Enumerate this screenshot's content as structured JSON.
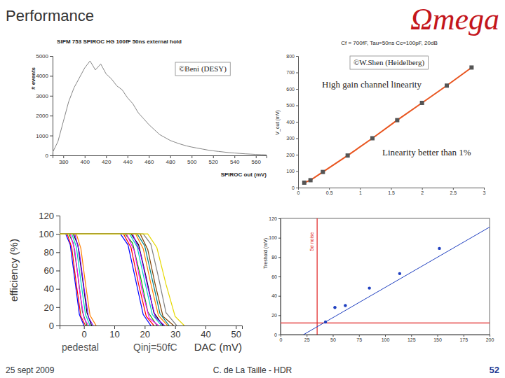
{
  "page": {
    "title": "Performance",
    "logo": "Ωmega",
    "footer": {
      "date": "25 sept 2009",
      "author": "C. de La Taille - HDR",
      "page": "52"
    }
  },
  "chart_data": [
    {
      "type": "line",
      "title": "SIPM 753 SPIROC HG 100fF 50ns external hold",
      "x_label": "SPIROC out (mV)",
      "y_label": "# events",
      "annotations": [
        "©Beni (DESY)"
      ],
      "x": [
        370,
        375,
        380,
        385,
        390,
        395,
        400,
        405,
        410,
        415,
        420,
        425,
        430,
        435,
        440,
        445,
        450,
        455,
        460,
        465,
        470,
        475,
        480,
        485,
        490,
        495,
        500,
        505,
        510,
        515,
        520,
        525,
        530,
        535,
        540,
        545,
        550,
        555,
        560,
        565,
        570
      ],
      "series": [
        {
          "color": "#777777",
          "values": [
            150,
            700,
            1700,
            2700,
            3400,
            3900,
            4400,
            4750,
            4300,
            4600,
            4100,
            3850,
            3500,
            3300,
            2900,
            2600,
            2150,
            1850,
            1550,
            1300,
            1050,
            900,
            750,
            650,
            560,
            480,
            420,
            370,
            320,
            270,
            230,
            200,
            170,
            140,
            120,
            100,
            80,
            65,
            50,
            40,
            30
          ]
        }
      ],
      "xlim": [
        370,
        570
      ],
      "xticks": [
        380,
        400,
        420,
        440,
        460,
        480,
        500,
        520,
        540,
        560
      ],
      "ylim": [
        0,
        5000
      ],
      "yticks": [
        0,
        1000,
        2000,
        3000,
        4000,
        5000
      ]
    },
    {
      "type": "line",
      "title": "Cf = 700fF, Tau=50ns Cc=100pF, 20dB",
      "y_label": "V_out (mV)",
      "annotations": [
        "©W.Shen (Heidelberg)",
        "High gain channel linearity",
        "Linearity better than 1%"
      ],
      "x": [
        0.1,
        0.2,
        0.4,
        0.8,
        1.2,
        1.6,
        2,
        2.4,
        2.8
      ],
      "series": [
        {
          "color": "#e8541e",
          "marker": "square",
          "values": [
            30,
            45,
            95,
            195,
            300,
            410,
            515,
            620,
            730
          ]
        }
      ],
      "xlim": [
        0,
        3
      ],
      "xticks": [
        0,
        0.5,
        1,
        1.5,
        2,
        2.5,
        3
      ],
      "ylim": [
        0,
        800
      ],
      "yticks": [
        0,
        100,
        200,
        300,
        400,
        500,
        600,
        700,
        800
      ]
    },
    {
      "type": "line",
      "x_label": "DAC (mV)",
      "y_label": "efficiency (%)",
      "annotations": [
        "pedestal",
        "Qinj=50fC"
      ],
      "series": [
        {
          "color": "#0000ff",
          "x": [
            -8,
            -6,
            -4.5,
            -3,
            -1.5,
            0
          ],
          "values": [
            100,
            100,
            88,
            50,
            12,
            0
          ]
        },
        {
          "color": "#ff0000",
          "x": [
            -8,
            -5.5,
            -4,
            -2.5,
            -1,
            0.5
          ],
          "values": [
            100,
            100,
            85,
            45,
            10,
            0
          ]
        },
        {
          "color": "#00aa00",
          "x": [
            -8,
            -5,
            -3.5,
            -2,
            -0.5,
            1
          ],
          "values": [
            100,
            100,
            90,
            55,
            15,
            0
          ]
        },
        {
          "color": "#ff00ff",
          "x": [
            -8,
            -4.5,
            -3,
            -1.5,
            0,
            1.5
          ],
          "values": [
            100,
            100,
            82,
            40,
            8,
            0
          ]
        },
        {
          "color": "#00cccc",
          "x": [
            -8,
            -4,
            -2.5,
            -1,
            0.5,
            2
          ],
          "values": [
            100,
            100,
            86,
            48,
            12,
            0
          ]
        },
        {
          "color": "#000000",
          "x": [
            -8,
            -3.5,
            -2,
            -0.5,
            1,
            2.5
          ],
          "values": [
            100,
            100,
            88,
            52,
            14,
            0
          ]
        },
        {
          "color": "#8000ff",
          "x": [
            -8,
            -3,
            -1.5,
            0,
            1.5,
            3
          ],
          "values": [
            100,
            100,
            80,
            42,
            9,
            0
          ]
        },
        {
          "color": "#ff8000",
          "x": [
            -8,
            -2.5,
            -1,
            0.5,
            2,
            4
          ],
          "values": [
            100,
            100,
            84,
            46,
            11,
            0
          ]
        },
        {
          "color": "#0000ff",
          "x": [
            -8,
            12,
            14.5,
            17,
            19.5,
            22
          ],
          "values": [
            100,
            100,
            88,
            50,
            12,
            0
          ]
        },
        {
          "color": "#ff0000",
          "x": [
            -8,
            13,
            15.5,
            18,
            20.5,
            23
          ],
          "values": [
            100,
            100,
            85,
            45,
            10,
            0
          ]
        },
        {
          "color": "#00aa00",
          "x": [
            -8,
            13.5,
            16,
            18.5,
            21,
            24
          ],
          "values": [
            100,
            100,
            90,
            55,
            15,
            0
          ]
        },
        {
          "color": "#ff00ff",
          "x": [
            -8,
            14,
            16.5,
            19,
            21.5,
            24.5
          ],
          "values": [
            100,
            100,
            82,
            40,
            8,
            0
          ]
        },
        {
          "color": "#00cccc",
          "x": [
            -8,
            15,
            17.5,
            20,
            22.5,
            25.5
          ],
          "values": [
            100,
            100,
            86,
            48,
            12,
            0
          ]
        },
        {
          "color": "#000000",
          "x": [
            -8,
            15.5,
            18,
            20.5,
            23,
            26
          ],
          "values": [
            100,
            100,
            88,
            52,
            14,
            0
          ]
        },
        {
          "color": "#8000ff",
          "x": [
            -8,
            16,
            18.5,
            21,
            23.5,
            26.5
          ],
          "values": [
            100,
            100,
            80,
            42,
            9,
            0
          ]
        },
        {
          "color": "#ff8000",
          "x": [
            -8,
            17,
            19.5,
            22,
            24.5,
            27.5
          ],
          "values": [
            100,
            100,
            84,
            46,
            11,
            0
          ]
        },
        {
          "color": "#008080",
          "x": [
            -8,
            17.5,
            20,
            22.5,
            25,
            28
          ],
          "values": [
            100,
            100,
            87,
            50,
            13,
            0
          ]
        },
        {
          "color": "#804000",
          "x": [
            -8,
            18.5,
            21,
            23.5,
            26,
            29.5
          ],
          "values": [
            100,
            100,
            83,
            44,
            10,
            0
          ]
        },
        {
          "color": "#808080",
          "x": [
            -8,
            19.5,
            22,
            24.5,
            27,
            30.5
          ],
          "values": [
            100,
            100,
            89,
            53,
            14,
            0
          ]
        },
        {
          "color": "#e6d800",
          "x": [
            -8,
            21,
            24,
            27,
            30,
            33
          ],
          "values": [
            100,
            100,
            85,
            45,
            10,
            0
          ]
        }
      ],
      "xlim": [
        -8,
        52
      ],
      "xticks": [
        0,
        10,
        20,
        30,
        40,
        50
      ],
      "ylim": [
        0,
        120
      ],
      "yticks": [
        0,
        20,
        40,
        60,
        80,
        100,
        120
      ]
    },
    {
      "type": "scatter",
      "y_label": "Treshold (mV)",
      "annotations": [
        "5σ noise"
      ],
      "vline": 35,
      "hline": 12,
      "series": [
        {
          "type": "scatter",
          "color": "#2040c0",
          "marker": "circle",
          "x": [
            43,
            52,
            62,
            85,
            114,
            152
          ],
          "values": [
            13,
            28,
            30,
            48,
            63,
            89
          ]
        },
        {
          "type": "line",
          "color": "#2040c0",
          "x": [
            22,
            200
          ],
          "values": [
            0,
            111
          ]
        }
      ],
      "xlim": [
        0,
        200
      ],
      "xticks": [
        0,
        25,
        50,
        75,
        100,
        125,
        150,
        175,
        200
      ],
      "ylim": [
        0,
        120
      ],
      "yticks": [
        0,
        20,
        40,
        60,
        80,
        100,
        120
      ]
    }
  ]
}
